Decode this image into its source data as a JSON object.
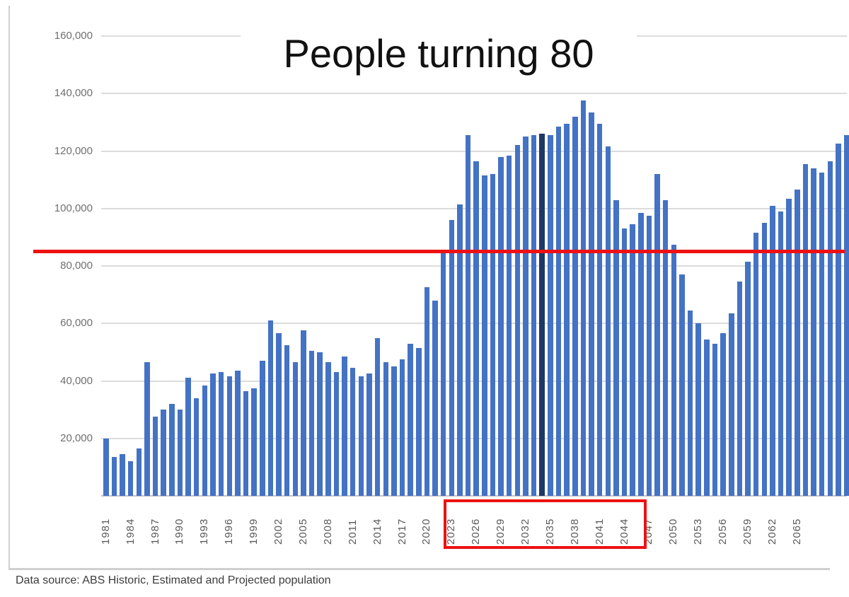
{
  "title": "People turning 80",
  "source_note": "Data source: ABS Historic, Estimated and Projected population",
  "chart_data": {
    "type": "bar",
    "title": "People turning 80",
    "xlabel": "",
    "ylabel": "",
    "ylim": [
      0,
      160000
    ],
    "grid": "horizontal",
    "legend_position": "none",
    "bar_color": "#4472C4",
    "years": [
      1981,
      1982,
      1983,
      1984,
      1985,
      1986,
      1987,
      1988,
      1989,
      1990,
      1991,
      1992,
      1993,
      1994,
      1995,
      1996,
      1997,
      1998,
      1999,
      2000,
      2001,
      2002,
      2003,
      2004,
      2005,
      2006,
      2007,
      2008,
      2009,
      2010,
      2011,
      2012,
      2013,
      2014,
      2015,
      2016,
      2017,
      2018,
      2019,
      2020,
      2021,
      2022,
      2023,
      2024,
      2025,
      2026,
      2027,
      2028,
      2029,
      2030,
      2031,
      2032,
      2033,
      2034,
      2035,
      2036,
      2037,
      2038,
      2039,
      2040,
      2041,
      2042,
      2043,
      2044,
      2045,
      2046,
      2047,
      2048,
      2049,
      2050,
      2051,
      2052,
      2053,
      2054,
      2055,
      2056,
      2057,
      2058,
      2059,
      2060,
      2061,
      2062,
      2063,
      2064,
      2065,
      2066,
      2067,
      2068,
      2069,
      2070,
      2071
    ],
    "values": [
      20000,
      13500,
      14500,
      12000,
      16500,
      46500,
      27500,
      30000,
      32000,
      30000,
      41000,
      34000,
      38500,
      42500,
      43000,
      41500,
      43500,
      36500,
      37500,
      47000,
      61000,
      56500,
      52500,
      46500,
      57500,
      50500,
      50000,
      46500,
      43000,
      48500,
      44500,
      41500,
      42500,
      55000,
      46500,
      45000,
      47500,
      53000,
      51500,
      72500,
      68000,
      85500,
      96000,
      101500,
      125500,
      116500,
      111500,
      112000,
      118000,
      118500,
      122000,
      125000,
      125500,
      126000,
      125500,
      128500,
      129500,
      132000,
      137500,
      133500,
      129500,
      121500,
      103000,
      93000,
      94500,
      98500,
      97500,
      112000,
      103000,
      87500,
      77000,
      64500,
      60000,
      54500,
      53000,
      56500,
      63500,
      74500,
      81500,
      91500,
      95000,
      101000,
      99000,
      103500,
      106500,
      115500,
      114000,
      112500,
      116500,
      122500,
      125500
    ],
    "x_tick_labels": [
      "1981",
      "1984",
      "1987",
      "1990",
      "1993",
      "1996",
      "1999",
      "2002",
      "2005",
      "2008",
      "2011",
      "2014",
      "2017",
      "2020",
      "2023",
      "2026",
      "2029",
      "2032",
      "2035",
      "2038",
      "2041",
      "2044",
      "2047",
      "2050",
      "2053",
      "2056",
      "2059",
      "2062",
      "2065"
    ],
    "y_ticks": [
      20000,
      40000,
      60000,
      80000,
      100000,
      120000,
      140000,
      160000
    ],
    "y_tick_labels": [
      "20,000",
      "40,000",
      "60,000",
      "80,000",
      "100,000",
      "120,000",
      "140,000",
      "160,000"
    ],
    "highlighted_bar": {
      "year": 2034,
      "color": "#1F3864"
    },
    "reference_line": {
      "value": 85000,
      "color": "#EE1111"
    },
    "highlight_box": {
      "from_label": "2023",
      "to_label": "2044",
      "color": "#EE1111"
    }
  }
}
